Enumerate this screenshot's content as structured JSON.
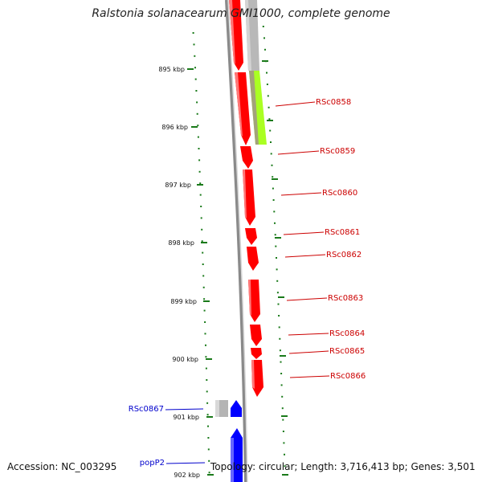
{
  "title": "Ralstonia solanacearum GMI1000, complete genome",
  "footer": {
    "accession": "Accession: NC_003295",
    "topology": "Topology: circular; Length: 3,716,413 bp; Genes: 3,501"
  },
  "colors": {
    "forward_gene": "#ff0000",
    "reverse_gene": "#0000ff",
    "other_gene": "#b4b4b4",
    "highlight_gene": "#aaff22",
    "ruler": "#1a7a1a",
    "red_label": "#cc0000",
    "blue_label": "#0000cc"
  },
  "ruler_labels": [
    {
      "id": "895",
      "text": "895 kbp"
    },
    {
      "id": "896",
      "text": "896 kbp"
    },
    {
      "id": "897",
      "text": "897 kbp"
    },
    {
      "id": "898",
      "text": "898 kbp"
    },
    {
      "id": "899",
      "text": "899 kbp"
    },
    {
      "id": "900",
      "text": "900 kbp"
    },
    {
      "id": "901",
      "text": "901 kbp"
    },
    {
      "id": "902",
      "text": "902 kbp"
    }
  ],
  "genes": [
    {
      "label": "RSc0858",
      "strand": "forward"
    },
    {
      "label": "RSc0859",
      "strand": "forward"
    },
    {
      "label": "RSc0860",
      "strand": "forward"
    },
    {
      "label": "RSc0861",
      "strand": "forward"
    },
    {
      "label": "RSc0862",
      "strand": "forward"
    },
    {
      "label": "RSc0863",
      "strand": "forward"
    },
    {
      "label": "RSc0864",
      "strand": "forward"
    },
    {
      "label": "RSc0865",
      "strand": "forward"
    },
    {
      "label": "RSc0866",
      "strand": "forward"
    },
    {
      "label": "RSc0867",
      "strand": "reverse"
    },
    {
      "label": "popP2",
      "strand": "reverse"
    }
  ]
}
